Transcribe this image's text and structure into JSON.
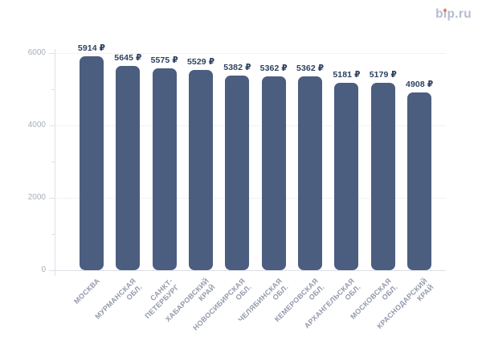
{
  "logo": {
    "text": "bip.ru"
  },
  "colors": {
    "bar": "#4b5e7f",
    "value_label": "#2c4160",
    "axis_text": "#a6adbc",
    "category_text": "#939aab",
    "grid": "#e3e5ea",
    "axis_line": "#dde0e7",
    "logo_text": "#b5bcd0",
    "logo_dot": "#ee7961"
  },
  "chart_data": {
    "type": "bar",
    "title": "",
    "categories": [
      "МОСКВА",
      "МУРМАНСКАЯ\nОБЛ.",
      "САНКТ-\nПЕТЕРБУРГ",
      "ХАБАРОВСКИЙ\nКРАЙ",
      "НОВОСИБИРСКАЯ\nОБЛ.",
      "ЧЕЛЯБИНСКАЯ\nОБЛ.",
      "КЕМЕРОВСКАЯ\nОБЛ.",
      "АРХАНГЕЛЬСКАЯ\nОБЛ.",
      "МОСКОВСКАЯ\nОБЛ.",
      "КРАСНОДАРСКИЙ\nКРАЙ"
    ],
    "values": [
      5914,
      5645,
      5575,
      5529,
      5382,
      5362,
      5362,
      5181,
      5179,
      4908
    ],
    "value_labels": [
      "5914 ₽",
      "5645 ₽",
      "5575 ₽",
      "5529 ₽",
      "5382 ₽",
      "5362 ₽",
      "5362 ₽",
      "5181 ₽",
      "5179 ₽",
      "4908 ₽"
    ],
    "currency": "₽",
    "xlabel": "",
    "ylabel": "",
    "ylim": [
      0,
      6600
    ],
    "yticks": [
      0,
      2000,
      4000,
      6000
    ],
    "ytick_labels": [
      "0",
      "2000",
      "4000",
      "6000"
    ],
    "minor_yticks": [
      1000,
      3000,
      5000
    ],
    "grid": true,
    "legend": false
  }
}
